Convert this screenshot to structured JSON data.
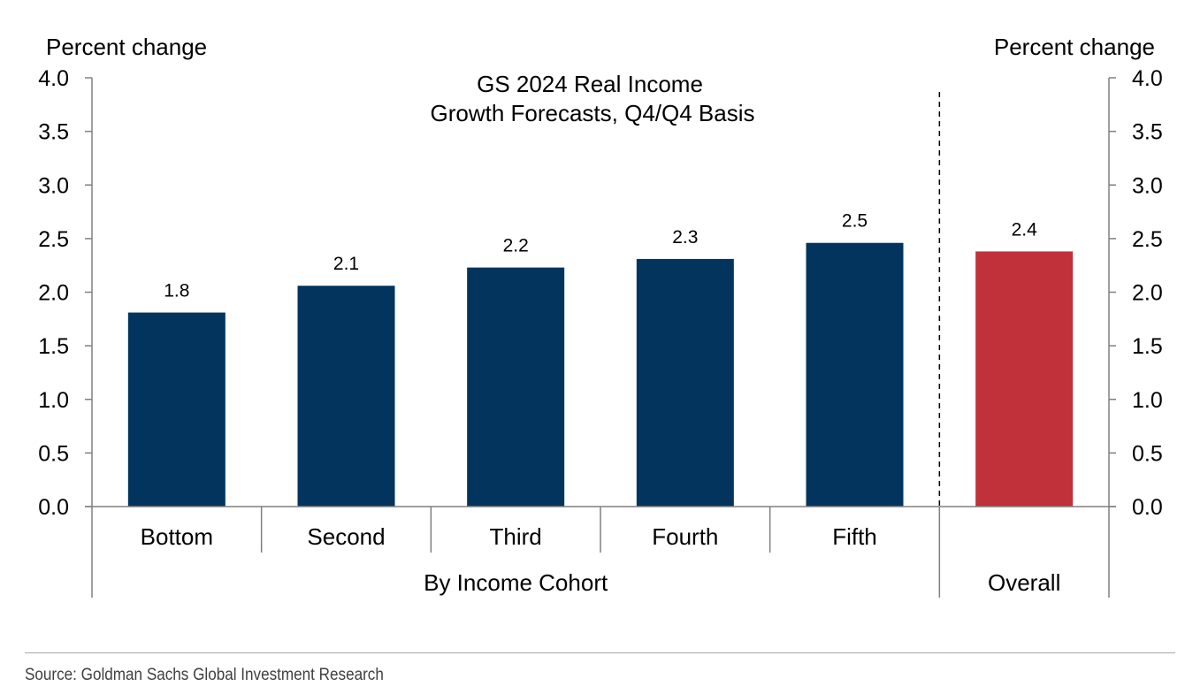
{
  "chart_data": {
    "type": "bar",
    "title_lines": [
      "GS 2024 Real Income",
      "Growth Forecasts, Q4/Q4 Basis"
    ],
    "ylabel_left": "Percent change",
    "ylabel_right": "Percent change",
    "ylim": [
      0,
      4.0
    ],
    "yticks": [
      "0.0",
      "0.5",
      "1.0",
      "1.5",
      "2.0",
      "2.5",
      "3.0",
      "3.5",
      "4.0"
    ],
    "categories": [
      "Bottom",
      "Second",
      "Third",
      "Fourth",
      "Fifth",
      ""
    ],
    "values": [
      1.81,
      2.06,
      2.23,
      2.31,
      2.46,
      2.38
    ],
    "value_labels": [
      "1.8",
      "2.1",
      "2.2",
      "2.3",
      "2.5",
      "2.4"
    ],
    "groups": [
      {
        "label": "By Income Cohort",
        "categories": [
          "Bottom",
          "Second",
          "Third",
          "Fourth",
          "Fifth"
        ]
      },
      {
        "label": "Overall",
        "categories": [
          ""
        ]
      }
    ],
    "colors": {
      "cohort": "#02345d",
      "overall": "#c0313a",
      "axis": "#808080"
    }
  },
  "source": "Source: Goldman Sachs Global Investment Research"
}
